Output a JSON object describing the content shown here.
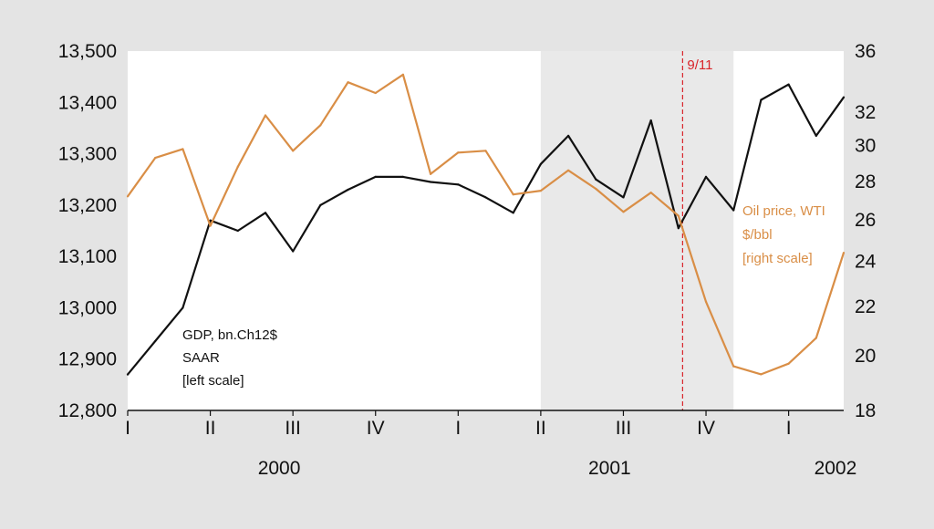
{
  "chart_data": {
    "type": "line",
    "x_periods": [
      "2000-01",
      "2000-02",
      "2000-03",
      "2000-04",
      "2000-05",
      "2000-06",
      "2000-07",
      "2000-08",
      "2000-09",
      "2000-10",
      "2000-11",
      "2000-12",
      "2001-01",
      "2001-02",
      "2001-03",
      "2001-04",
      "2001-05",
      "2001-06",
      "2001-07",
      "2001-08",
      "2001-09",
      "2001-10",
      "2001-11",
      "2001-12",
      "2002-01",
      "2002-02",
      "2002-03"
    ],
    "quarter_ticks": [
      "I",
      "II",
      "III",
      "IV",
      "I",
      "II",
      "III",
      "IV",
      "I"
    ],
    "year_labels": [
      "2000",
      "2001",
      "2002"
    ],
    "left_axis": {
      "ticks": [
        "12,800",
        "12,900",
        "13,000",
        "13,100",
        "13,200",
        "13,300",
        "13,400",
        "13,500"
      ],
      "ylim": [
        12800,
        13500
      ]
    },
    "right_axis": {
      "ticks": [
        "18",
        "20",
        "22",
        "24",
        "26",
        "28",
        "30",
        "32",
        "36"
      ],
      "ylim": [
        18,
        36
      ],
      "scale": "log"
    },
    "recession_shading": {
      "start": "2001-04",
      "end": "2001-11",
      "color": "#e9e9e9"
    },
    "event_line": {
      "x": "2001-09",
      "label": "9/11",
      "color": "#d9242a"
    },
    "series": [
      {
        "name": "GDP, bn.Ch12$ SAAR [left scale]",
        "axis": "left",
        "color": "#111111",
        "values": [
          12870,
          12935,
          13000,
          13170,
          13150,
          13185,
          13110,
          13200,
          13230,
          13255,
          13255,
          13245,
          13240,
          13215,
          13185,
          13280,
          13335,
          13250,
          13215,
          13365,
          13155,
          13255,
          13190,
          13405,
          13435,
          13335,
          13410
        ]
      },
      {
        "name": "Oil price, WTI $/bbl [right scale]",
        "axis": "right",
        "color": "#d98e46",
        "values": [
          27.2,
          29.3,
          29.8,
          25.7,
          28.8,
          31.8,
          29.7,
          31.2,
          33.9,
          33.2,
          34.4,
          28.4,
          29.6,
          29.7,
          27.3,
          27.5,
          28.6,
          27.6,
          26.4,
          27.4,
          26.2,
          22.2,
          19.6,
          19.3,
          19.7,
          20.7,
          24.4
        ]
      }
    ],
    "annotations": {
      "gdp": [
        "GDP, bn.Ch12$",
        "SAAR",
        "[left scale]"
      ],
      "oil": [
        "Oil price, WTI",
        "$/bbl",
        "[right scale]"
      ]
    }
  },
  "colors": {
    "background": "#e4e4e4",
    "plot_area": "#ffffff",
    "axis": "#111111"
  }
}
